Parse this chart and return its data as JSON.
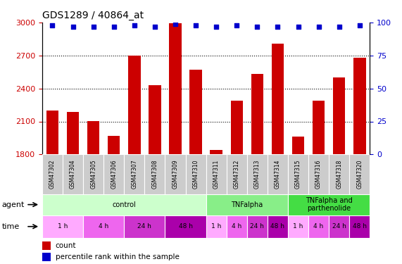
{
  "title": "GDS1289 / 40864_at",
  "samples": [
    "GSM47302",
    "GSM47304",
    "GSM47305",
    "GSM47306",
    "GSM47307",
    "GSM47308",
    "GSM47309",
    "GSM47310",
    "GSM47311",
    "GSM47312",
    "GSM47313",
    "GSM47314",
    "GSM47315",
    "GSM47316",
    "GSM47318",
    "GSM47320"
  ],
  "counts": [
    2200,
    2185,
    2105,
    1970,
    2700,
    2430,
    2990,
    2570,
    1840,
    2290,
    2530,
    2810,
    1960,
    2290,
    2500,
    2680
  ],
  "percentile": [
    98,
    97,
    97,
    97,
    98,
    97,
    99,
    98,
    97,
    98,
    97,
    97,
    97,
    97,
    97,
    98
  ],
  "ylim_left": [
    1800,
    3000
  ],
  "ylim_right": [
    0,
    100
  ],
  "yticks_left": [
    1800,
    2100,
    2400,
    2700,
    3000
  ],
  "yticks_right": [
    0,
    25,
    50,
    75,
    100
  ],
  "bar_color": "#cc0000",
  "dot_color": "#0000cc",
  "axis_label_color_left": "#cc0000",
  "axis_label_color_right": "#0000cc",
  "agent_groups": [
    {
      "label": "control",
      "start": 0,
      "end": 8,
      "color": "#ccffcc"
    },
    {
      "label": "TNFalpha",
      "start": 8,
      "end": 12,
      "color": "#88ee88"
    },
    {
      "label": "TNFalpha and\nparthenolide",
      "start": 12,
      "end": 16,
      "color": "#44dd44"
    }
  ],
  "time_spans": [
    {
      "label": "1 h",
      "start": 0,
      "end": 2,
      "color": "#ffaaff"
    },
    {
      "label": "4 h",
      "start": 2,
      "end": 4,
      "color": "#ee66ee"
    },
    {
      "label": "24 h",
      "start": 4,
      "end": 6,
      "color": "#cc33cc"
    },
    {
      "label": "48 h",
      "start": 6,
      "end": 8,
      "color": "#aa00aa"
    },
    {
      "label": "1 h",
      "start": 8,
      "end": 9,
      "color": "#ffaaff"
    },
    {
      "label": "4 h",
      "start": 9,
      "end": 10,
      "color": "#ee66ee"
    },
    {
      "label": "24 h",
      "start": 10,
      "end": 11,
      "color": "#cc33cc"
    },
    {
      "label": "48 h",
      "start": 11,
      "end": 12,
      "color": "#aa00aa"
    },
    {
      "label": "1 h",
      "start": 12,
      "end": 13,
      "color": "#ffaaff"
    },
    {
      "label": "4 h",
      "start": 13,
      "end": 14,
      "color": "#ee66ee"
    },
    {
      "label": "24 h",
      "start": 14,
      "end": 15,
      "color": "#cc33cc"
    },
    {
      "label": "48 h",
      "start": 15,
      "end": 16,
      "color": "#aa00aa"
    }
  ],
  "sample_bg": "#cccccc",
  "label_fontsize": 5.5,
  "legend_count_label": "count",
  "legend_perc_label": "percentile rank within the sample"
}
